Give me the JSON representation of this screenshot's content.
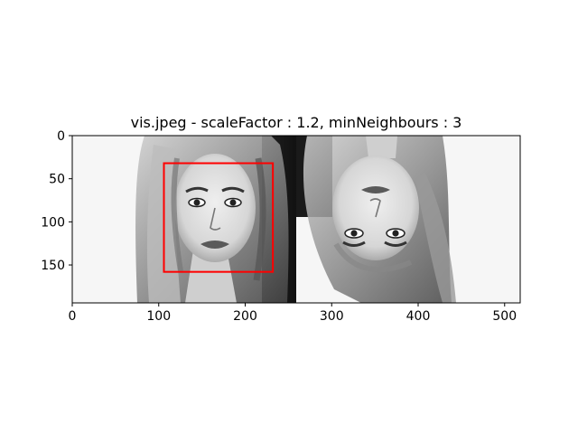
{
  "chart_data": {
    "type": "image",
    "title": "vis.jpeg - scaleFactor : 1.2, minNeighbours : 3",
    "xlim": [
      0,
      518
    ],
    "ylim": [
      194,
      0
    ],
    "xticks": [
      0,
      100,
      200,
      300,
      400,
      500
    ],
    "yticks": [
      0,
      50,
      100,
      150
    ],
    "image": {
      "description_panels": [
        {
          "name": "face-upright",
          "x_range": [
            0,
            259
          ],
          "background": "#f7f7f7"
        },
        {
          "name": "face-upside-down",
          "x_range": [
            259,
            518
          ],
          "background": "#f7f7f7"
        }
      ]
    },
    "detections": [
      {
        "label": "face",
        "x0": 106,
        "y0": 32,
        "x1": 232,
        "y1": 158,
        "color": "#ff0000"
      }
    ]
  }
}
